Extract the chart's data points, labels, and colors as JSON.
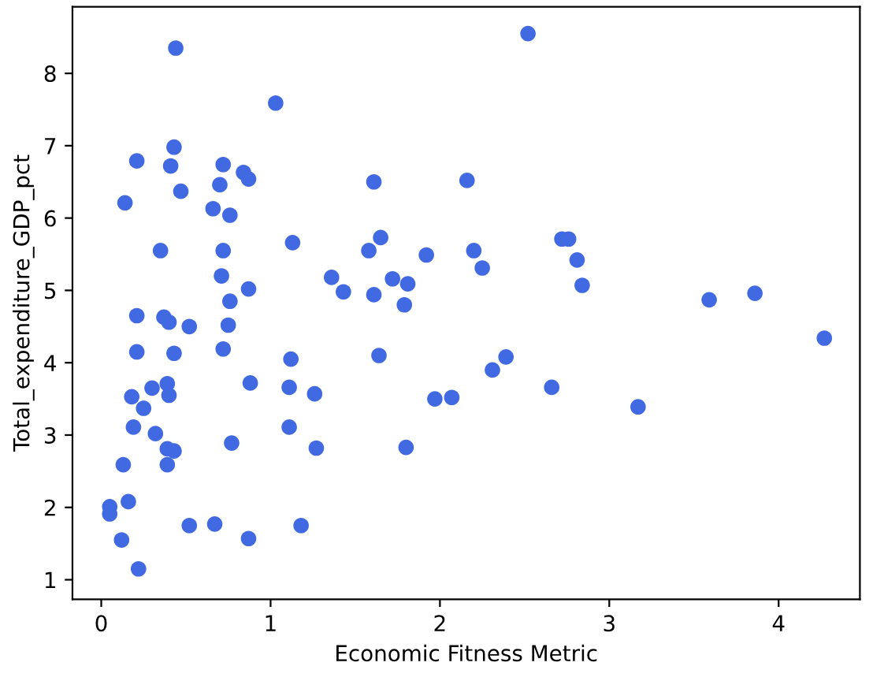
{
  "chart_data": {
    "type": "scatter",
    "xlabel": "Economic Fitness Metric",
    "ylabel": "Total_expenditure_GDP_pct",
    "xlim": [
      -0.17,
      4.48
    ],
    "ylim": [
      0.73,
      8.92
    ],
    "xticks": [
      0,
      1,
      2,
      3,
      4
    ],
    "yticks": [
      1,
      2,
      3,
      4,
      5,
      6,
      7,
      8
    ],
    "grid": false,
    "marker": "circle",
    "series": [
      {
        "color": "#4169e1",
        "x": [
          2.52,
          1.61,
          2.16,
          1.65,
          1.58,
          1.92,
          2.2,
          2.25,
          2.72,
          2.76,
          2.81,
          2.84,
          1.36,
          1.43,
          1.72,
          1.81,
          1.61,
          1.79,
          3.59,
          3.86,
          4.27,
          1.64,
          2.39,
          2.31,
          2.66,
          1.97,
          2.07,
          3.17,
          1.8,
          1.27,
          1.26,
          0.44,
          1.03,
          0.43,
          0.21,
          0.41,
          0.72,
          0.84,
          0.87,
          0.7,
          0.47,
          0.14,
          0.66,
          0.76,
          0.35,
          0.72,
          1.13,
          0.71,
          0.87,
          0.76,
          0.21,
          0.37,
          0.4,
          0.52,
          0.75,
          0.21,
          0.43,
          0.72,
          1.12,
          0.88,
          1.11,
          0.39,
          0.3,
          0.4,
          0.18,
          0.25,
          0.19,
          0.32,
          1.11,
          0.77,
          0.39,
          0.43,
          0.13,
          0.39,
          0.16,
          0.05,
          0.05,
          0.12,
          0.52,
          0.67,
          0.87,
          1.18,
          0.22
        ],
        "values": [
          8.55,
          6.5,
          6.52,
          5.73,
          5.55,
          5.49,
          5.55,
          5.31,
          5.71,
          5.71,
          5.42,
          5.07,
          5.18,
          4.98,
          5.16,
          5.09,
          4.94,
          4.8,
          4.87,
          4.96,
          4.34,
          4.1,
          4.08,
          3.9,
          3.66,
          3.5,
          3.52,
          3.39,
          2.83,
          2.82,
          3.57,
          8.35,
          7.59,
          6.98,
          6.79,
          6.72,
          6.74,
          6.63,
          6.54,
          6.46,
          6.37,
          6.21,
          6.13,
          6.04,
          5.55,
          5.55,
          5.66,
          5.2,
          5.02,
          4.85,
          4.65,
          4.63,
          4.56,
          4.5,
          4.52,
          4.15,
          4.13,
          4.19,
          4.05,
          3.72,
          3.66,
          3.71,
          3.65,
          3.55,
          3.53,
          3.37,
          3.11,
          3.02,
          3.11,
          2.89,
          2.81,
          2.78,
          2.59,
          2.59,
          2.08,
          2.01,
          1.91,
          1.55,
          1.75,
          1.77,
          1.57,
          1.75,
          1.15
        ]
      }
    ]
  }
}
